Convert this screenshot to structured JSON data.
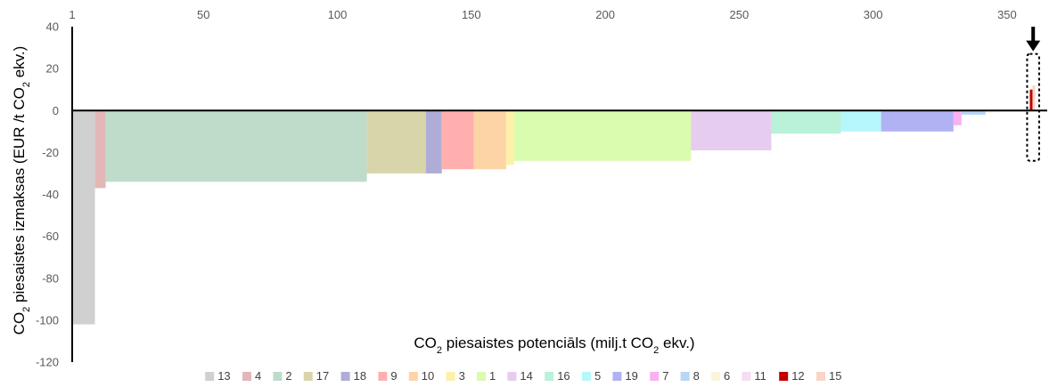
{
  "chart_data": {
    "type": "bar",
    "variant": "marginal-cost-curve",
    "xlabel": "CO₂ piesaistes potenciāls (milj.t CO₂ ekv.)",
    "ylabel": "CO₂ piesaistes izmaksas (EUR /t CO₂ ekv.)",
    "xlim": [
      1,
      365
    ],
    "ylim": [
      -120,
      40
    ],
    "x_ticks": [
      1,
      50,
      100,
      150,
      200,
      250,
      300,
      350
    ],
    "y_ticks": [
      40,
      20,
      0,
      -20,
      -40,
      -60,
      -80,
      -100,
      -120
    ],
    "x_axis_position": "top",
    "grid": false,
    "legend_position": "bottom",
    "highlight": {
      "x_range": [
        357.5,
        362
      ],
      "y_range": [
        -24,
        27
      ],
      "marker": "arrow-down"
    },
    "series": [
      {
        "name": "13",
        "color": "#d0d0d0",
        "x_start": 1,
        "x_end": 9.5,
        "value": -102
      },
      {
        "name": "4",
        "color": "#e3b7b7",
        "x_start": 9.5,
        "x_end": 13.5,
        "value": -37
      },
      {
        "name": "2",
        "color": "#bfdccb",
        "x_start": 13.5,
        "x_end": 111,
        "value": -34
      },
      {
        "name": "17",
        "color": "#d8d5ab",
        "x_start": 111,
        "x_end": 133,
        "value": -30
      },
      {
        "name": "18",
        "color": "#b0acd8",
        "x_start": 133,
        "x_end": 139,
        "value": -30
      },
      {
        "name": "9",
        "color": "#ffb0ae",
        "x_start": 139,
        "x_end": 151,
        "value": -28
      },
      {
        "name": "10",
        "color": "#fdd4a6",
        "x_start": 151,
        "x_end": 163,
        "value": -28
      },
      {
        "name": "3",
        "color": "#fdf0a8",
        "x_start": 163,
        "x_end": 166,
        "value": -26
      },
      {
        "name": "1",
        "color": "#d9fcae",
        "x_start": 166,
        "x_end": 232,
        "value": -24
      },
      {
        "name": "14",
        "color": "#e6cdf0",
        "x_start": 232,
        "x_end": 262,
        "value": -19
      },
      {
        "name": "16",
        "color": "#b9f1d9",
        "x_start": 262,
        "x_end": 288,
        "value": -11
      },
      {
        "name": "5",
        "color": "#b5f7fa",
        "x_start": 288,
        "x_end": 303,
        "value": -10
      },
      {
        "name": "19",
        "color": "#b1b2f4",
        "x_start": 303,
        "x_end": 330,
        "value": -10
      },
      {
        "name": "7",
        "color": "#f9b1f2",
        "x_start": 330,
        "x_end": 333,
        "value": -7
      },
      {
        "name": "8",
        "color": "#b8d6f5",
        "x_start": 333,
        "x_end": 342,
        "value": -2
      },
      {
        "name": "6",
        "color": "#fbf4dc",
        "x_start": 342,
        "x_end": 345,
        "value": -1
      },
      {
        "name": "11",
        "color": "#f5ddf3",
        "x_start": 345,
        "x_end": 358,
        "value": -0.5
      },
      {
        "name": "12",
        "color": "#c00000",
        "x_start": 358.5,
        "x_end": 359.5,
        "value": 10
      },
      {
        "name": "15",
        "color": "#f8d5c4",
        "x_start": 359.5,
        "x_end": 360.5,
        "value": 12
      }
    ]
  }
}
